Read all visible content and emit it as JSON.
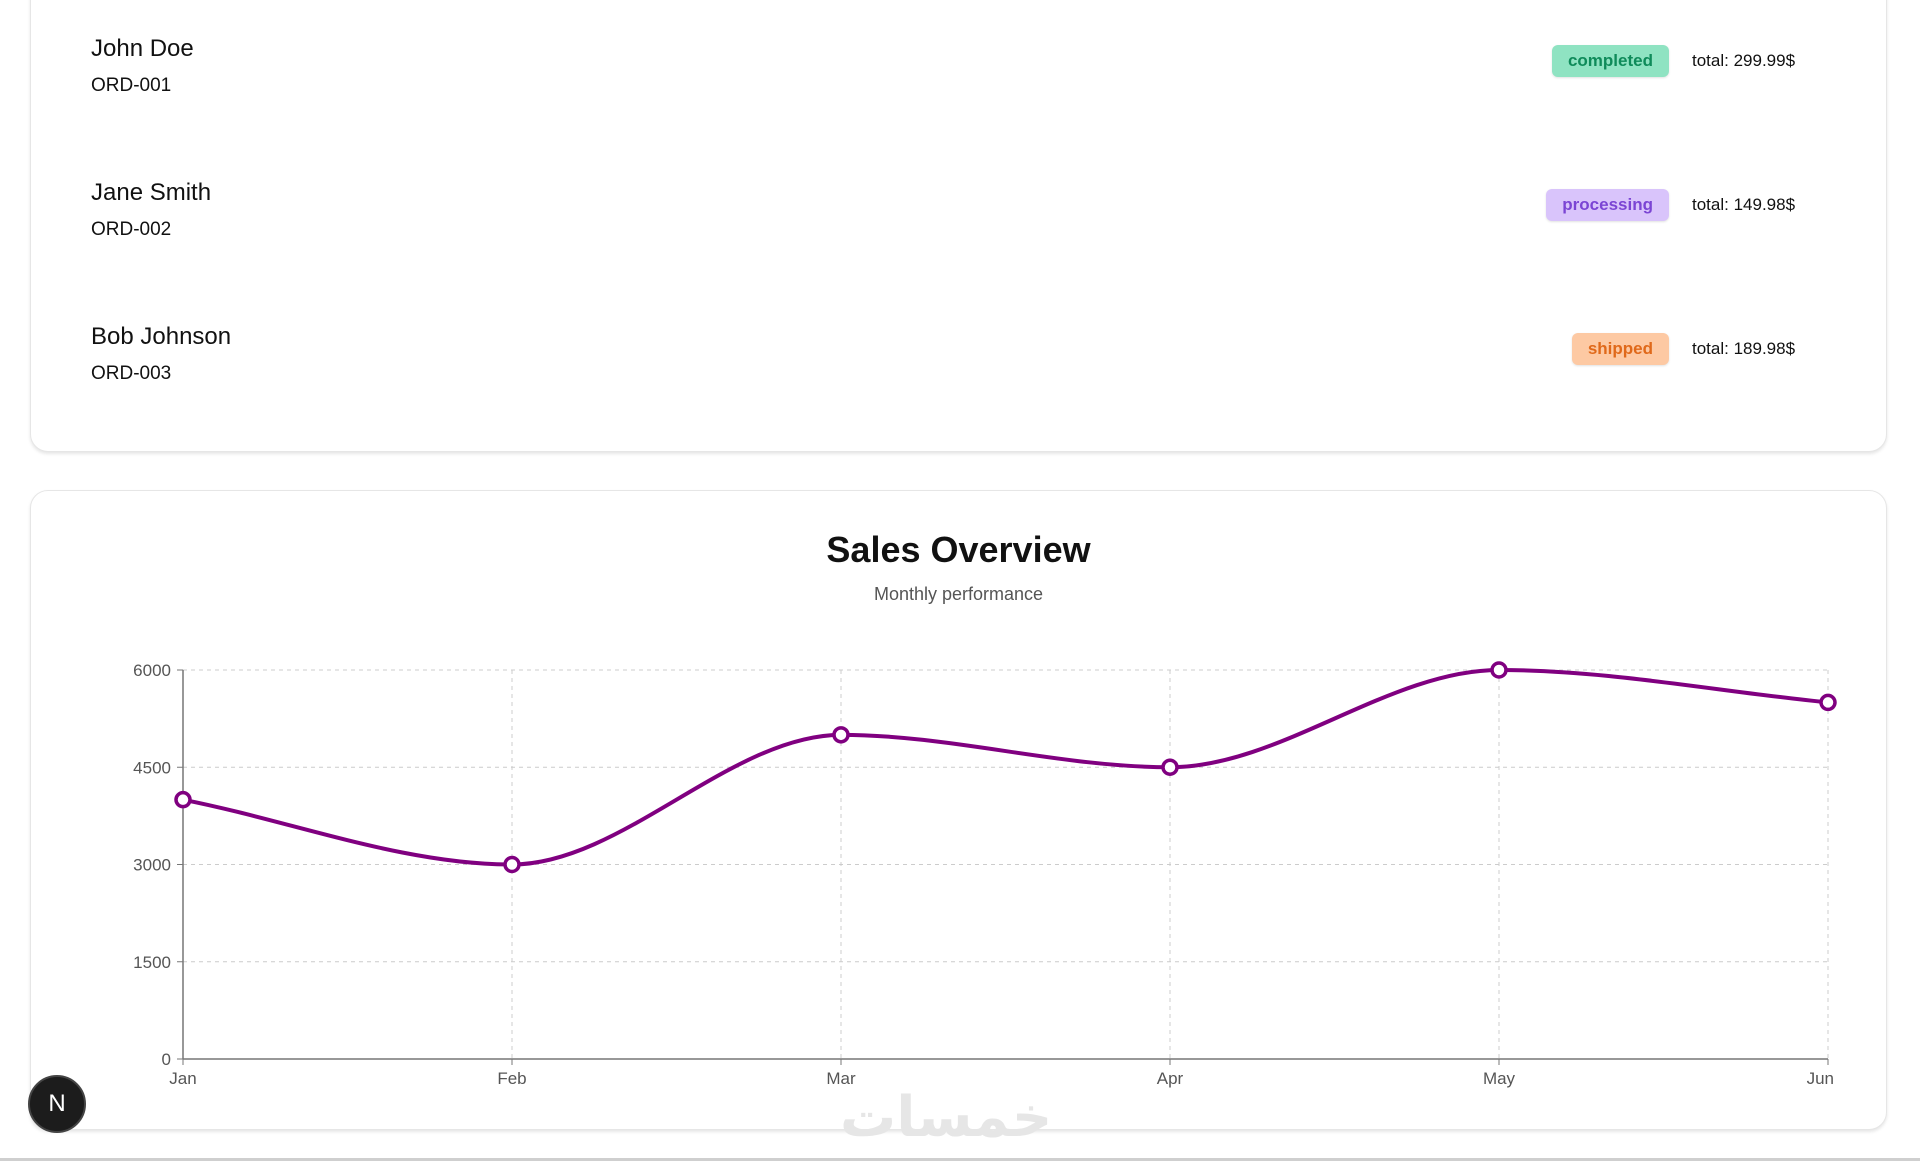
{
  "orders": [
    {
      "customer": "John Doe",
      "order_id": "ORD-001",
      "status": "completed",
      "total": "total: 299.99$"
    },
    {
      "customer": "Jane Smith",
      "order_id": "ORD-002",
      "status": "processing",
      "total": "total: 149.98$"
    },
    {
      "customer": "Bob Johnson",
      "order_id": "ORD-003",
      "status": "shipped",
      "total": "total: 189.98$"
    }
  ],
  "chart": {
    "title": "Sales Overview",
    "subtitle": "Monthly performance"
  },
  "chart_data": {
    "type": "line",
    "title": "Sales Overview",
    "subtitle": "Monthly performance",
    "categories": [
      "Jan",
      "Feb",
      "Mar",
      "Apr",
      "May",
      "Jun"
    ],
    "series": [
      {
        "values": [
          4000,
          3000,
          5000,
          4500,
          6000,
          5500
        ],
        "color": "#800080"
      }
    ],
    "ylim": [
      0,
      6000
    ],
    "yticks": [
      0,
      1500,
      3000,
      4500,
      6000
    ],
    "grid": true,
    "xlabel": "",
    "ylabel": ""
  },
  "overlay": {
    "next_badge_letter": "N",
    "watermark": "خمسات"
  },
  "colors": {
    "line": "#800080",
    "completed_bg": "#8fe3c2",
    "processing_bg": "#d9c4fb",
    "shipped_bg": "#fdc9a3"
  }
}
